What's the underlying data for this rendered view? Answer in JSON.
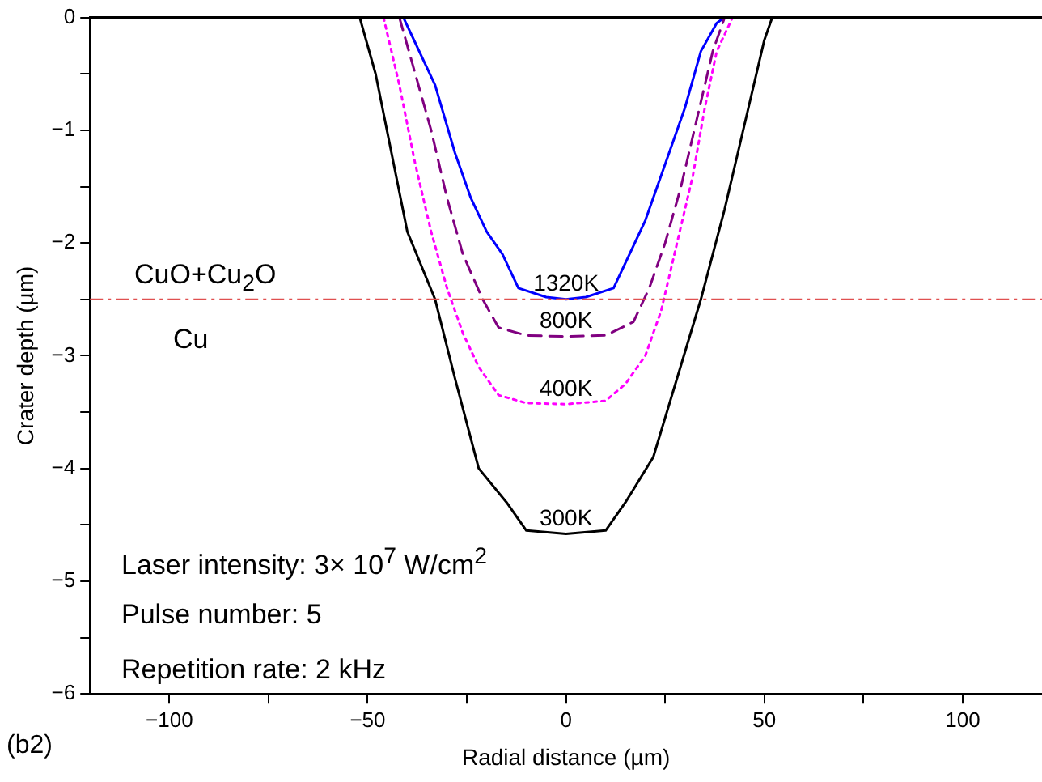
{
  "chart_data": {
    "type": "line",
    "xlabel": "Radial distance (µm)",
    "ylabel": "Crater depth (µm)",
    "xlim": [
      -120,
      120
    ],
    "ylim": [
      -6,
      0
    ],
    "xticks": [
      -100,
      {
        "value": -75,
        "label": null
      },
      -50,
      {
        "value": -25,
        "label": null
      },
      0,
      {
        "value": 25,
        "label": null
      },
      50,
      {
        "value": 75,
        "label": null
      },
      100
    ],
    "yticks": [
      -6,
      {
        "value": -5.5,
        "label": null
      },
      -5,
      {
        "value": -4.5,
        "label": null
      },
      -4,
      {
        "value": -3.5,
        "label": null
      },
      -3,
      {
        "value": -2.5,
        "label": null
      },
      -2,
      {
        "value": -1.5,
        "label": null
      },
      -1,
      {
        "value": -0.5,
        "label": null
      },
      0
    ],
    "grid": false,
    "legend": false,
    "marker": "none",
    "series": [
      {
        "name": "300K",
        "color": "#000000",
        "line_style": "solid",
        "x": [
          -52,
          -48,
          -44,
          -40,
          -33,
          -28,
          -22,
          -15,
          -10,
          0,
          10,
          15,
          22,
          28,
          34,
          40,
          46,
          50,
          52
        ],
        "values": [
          0,
          -0.5,
          -1.2,
          -1.9,
          -2.5,
          -3.2,
          -4,
          -4.3,
          -4.55,
          -4.58,
          -4.55,
          -4.3,
          -3.9,
          -3.2,
          -2.5,
          -1.7,
          -0.8,
          -0.2,
          0
        ]
      },
      {
        "name": "400K",
        "color": "#ff00ff",
        "line_style": "dotted",
        "x": [
          -46,
          -42,
          -38,
          -34,
          -30,
          -26,
          -22,
          -17,
          -10,
          0,
          10,
          15,
          20,
          24,
          28,
          32,
          35,
          38,
          42
        ],
        "values": [
          0,
          -0.6,
          -1.3,
          -1.9,
          -2.4,
          -2.8,
          -3.1,
          -3.35,
          -3.42,
          -3.43,
          -3.4,
          -3.25,
          -3,
          -2.6,
          -2,
          -1.4,
          -0.8,
          -0.3,
          0
        ]
      },
      {
        "name": "800K",
        "color": "#800080",
        "line_style": "dashed",
        "x": [
          -42,
          -38,
          -34,
          -30,
          -26,
          -21,
          -17,
          -10,
          0,
          10,
          17,
          21,
          25,
          29,
          33,
          37,
          40
        ],
        "values": [
          0,
          -0.5,
          -1,
          -1.6,
          -2.1,
          -2.5,
          -2.75,
          -2.82,
          -2.83,
          -2.82,
          -2.7,
          -2.4,
          -2,
          -1.5,
          -0.9,
          -0.3,
          0
        ]
      },
      {
        "name": "1320K",
        "color": "#0000ff",
        "line_style": "solid",
        "x": [
          -41,
          -37,
          -33,
          -28,
          -24,
          -20,
          -16,
          -12,
          -5,
          0,
          5,
          12,
          16,
          20,
          25,
          30,
          34,
          38,
          40
        ],
        "values": [
          0,
          -0.3,
          -0.6,
          -1.2,
          -1.6,
          -1.9,
          -2.1,
          -2.4,
          -2.48,
          -2.5,
          -2.48,
          -2.4,
          -2.1,
          -1.8,
          -1.3,
          -0.8,
          -0.3,
          -0.05,
          0
        ]
      }
    ],
    "ref_lines": [
      {
        "axis": "y",
        "value": -2.5,
        "color": "#e05050",
        "line_style": "dashdot"
      }
    ],
    "annotations": [
      "CuO+Cu$_{2}$O",
      "Cu",
      "Laser intensity: 3× 10$^{7}$ W/cm$^{2}$",
      "Pulse number: 5",
      "Repetition rate: 2 kHz",
      "(b2)"
    ]
  }
}
